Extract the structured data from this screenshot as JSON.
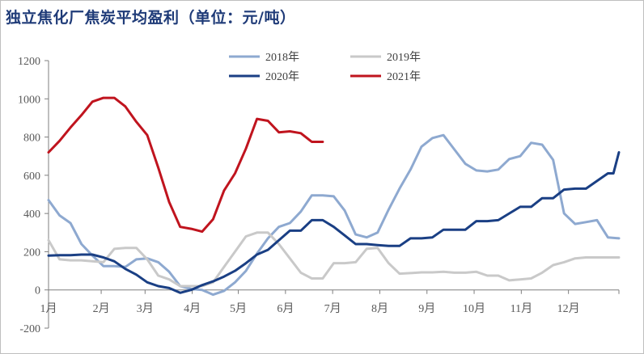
{
  "chart_data": {
    "type": "line",
    "title": "独立焦化厂焦炭平均盈利（单位：元/吨）",
    "ylim": [
      -200,
      1200
    ],
    "yticks": [
      "1200",
      "1000",
      "800",
      "600",
      "400",
      "200",
      "0",
      "-200"
    ],
    "ytick_values": [
      1200,
      1000,
      800,
      600,
      400,
      200,
      0,
      -200
    ],
    "xlim": [
      0,
      52
    ],
    "xticks": [
      "1月",
      "2月",
      "3月",
      "4月",
      "5月",
      "6月",
      "7月",
      "8月",
      "9月",
      "10月",
      "11月",
      "12月"
    ],
    "xtick_weeks": [
      0,
      4.8,
      8.8,
      13.1,
      17.3,
      21.6,
      25.9,
      30.2,
      34.5,
      38.8,
      43.1,
      47.4
    ],
    "grid": false,
    "legend_position": "top",
    "series": [
      {
        "name": "2018年",
        "color": "#8ea9d0",
        "width": 3,
        "x": [
          0,
          1,
          2,
          3,
          4,
          5,
          6,
          7,
          8,
          9,
          10,
          11,
          12,
          13,
          14,
          15,
          16,
          17,
          18,
          19,
          20,
          21,
          22,
          23,
          24,
          25,
          26,
          27,
          28,
          29,
          30,
          31,
          32,
          33,
          34,
          35,
          36,
          37,
          38,
          39,
          40,
          41,
          42,
          43,
          44,
          45,
          46,
          47,
          48,
          49,
          50,
          51,
          52
        ],
        "y": [
          470,
          390,
          350,
          240,
          180,
          125,
          125,
          120,
          160,
          165,
          145,
          95,
          20,
          5,
          0,
          -25,
          -5,
          40,
          100,
          190,
          270,
          330,
          350,
          410,
          495,
          495,
          490,
          415,
          290,
          275,
          300,
          420,
          530,
          630,
          750,
          795,
          810,
          735,
          660,
          625,
          620,
          630,
          685,
          700,
          770,
          760,
          680,
          400,
          345,
          355,
          365,
          275,
          270
        ]
      },
      {
        "name": "2019年",
        "color": "#c9c9c9",
        "width": 3,
        "x": [
          0,
          1,
          2,
          3,
          4,
          5,
          6,
          7,
          8,
          9,
          10,
          11,
          12,
          13,
          14,
          15,
          16,
          17,
          18,
          19,
          20,
          21,
          22,
          23,
          24,
          25,
          26,
          27,
          28,
          29,
          30,
          31,
          32,
          33,
          34,
          35,
          36,
          37,
          38,
          39,
          40,
          41,
          42,
          43,
          44,
          45,
          46,
          47,
          48,
          49,
          50,
          51,
          52
        ],
        "y": [
          260,
          160,
          155,
          155,
          150,
          145,
          215,
          220,
          220,
          160,
          75,
          55,
          20,
          20,
          20,
          40,
          120,
          200,
          280,
          300,
          300,
          240,
          165,
          90,
          60,
          60,
          140,
          140,
          145,
          215,
          220,
          140,
          85,
          88,
          92,
          92,
          95,
          90,
          90,
          95,
          75,
          75,
          50,
          55,
          60,
          90,
          130,
          145,
          165,
          170,
          170,
          170,
          170
        ]
      },
      {
        "name": "2020年",
        "color": "#1a3f84",
        "width": 3,
        "x": [
          0,
          1,
          2,
          3,
          4,
          5,
          6,
          7,
          8,
          9,
          10,
          11,
          12,
          13,
          14,
          15,
          16,
          17,
          18,
          19,
          20,
          21,
          22,
          23,
          24,
          25,
          26,
          27,
          28,
          29,
          30,
          31,
          32,
          33,
          34,
          35,
          36,
          37,
          38,
          39,
          40,
          41,
          42,
          43,
          44,
          45,
          46,
          47,
          48,
          49,
          50,
          51,
          51.5,
          52
        ],
        "y": [
          180,
          182,
          182,
          185,
          185,
          170,
          150,
          110,
          80,
          40,
          20,
          10,
          -15,
          0,
          25,
          45,
          70,
          100,
          140,
          185,
          210,
          260,
          310,
          310,
          365,
          365,
          330,
          285,
          240,
          240,
          235,
          230,
          230,
          270,
          270,
          275,
          315,
          315,
          315,
          360,
          360,
          365,
          400,
          435,
          435,
          480,
          480,
          525,
          530,
          530,
          570,
          610,
          610,
          720
        ]
      },
      {
        "name": "2021年",
        "color": "#c0141e",
        "width": 3,
        "x": [
          0,
          1,
          2,
          3,
          4,
          5,
          6,
          7,
          8,
          9,
          10,
          11,
          12,
          13,
          14,
          15,
          16,
          17,
          18,
          19,
          20,
          21,
          22,
          23,
          24,
          25
        ],
        "y": [
          720,
          780,
          850,
          915,
          985,
          1005,
          1005,
          960,
          880,
          810,
          640,
          460,
          330,
          320,
          305,
          370,
          520,
          610,
          740,
          895,
          885,
          825,
          830,
          820,
          775,
          775
        ]
      }
    ]
  }
}
